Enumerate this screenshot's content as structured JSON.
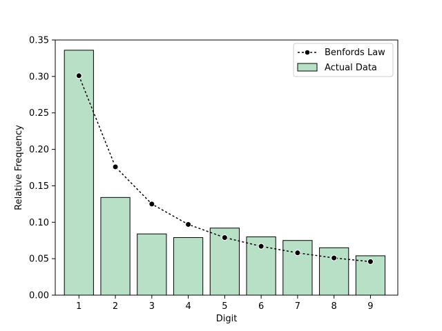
{
  "chart_data": {
    "type": "bar",
    "title": "",
    "xlabel": "Digit",
    "ylabel": "Relative Frequency",
    "categories": [
      "1",
      "2",
      "3",
      "4",
      "5",
      "6",
      "7",
      "8",
      "9"
    ],
    "xlim": [
      0.35,
      9.75
    ],
    "ylim": [
      0.0,
      0.35
    ],
    "yticks": [
      0.0,
      0.05,
      0.1,
      0.15,
      0.2,
      0.25,
      0.3,
      0.35
    ],
    "ytick_labels": [
      "0.00",
      "0.05",
      "0.10",
      "0.15",
      "0.20",
      "0.25",
      "0.30",
      "0.35"
    ],
    "grid": false,
    "legend_position": "top-right",
    "series": [
      {
        "name": "Actual Data",
        "kind": "bar",
        "color": "#b8e0c6",
        "edgecolor": "#000000",
        "values": [
          0.336,
          0.134,
          0.084,
          0.079,
          0.092,
          0.08,
          0.075,
          0.065,
          0.054
        ]
      },
      {
        "name": "Benfords Law",
        "kind": "line",
        "style": "dotted-with-markers",
        "color": "#000000",
        "values": [
          0.301,
          0.176,
          0.125,
          0.097,
          0.079,
          0.067,
          0.058,
          0.051,
          0.046
        ]
      }
    ]
  }
}
